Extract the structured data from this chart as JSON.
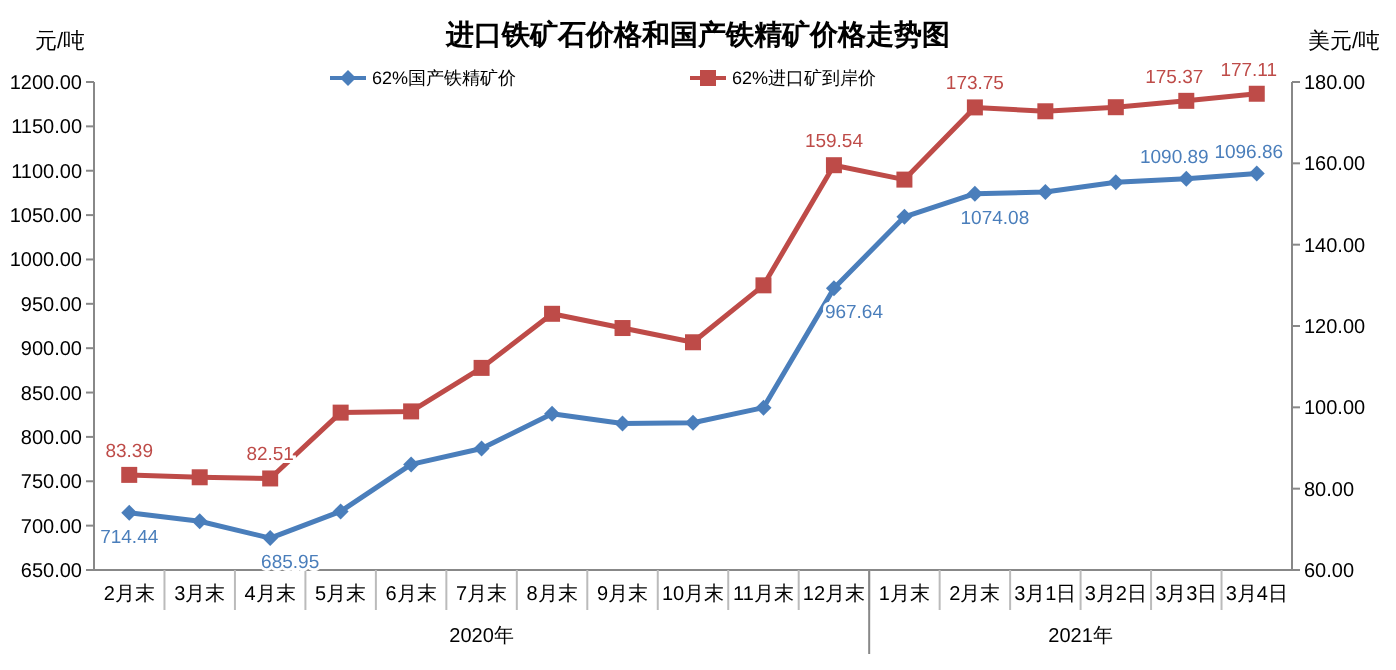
{
  "chart_data": {
    "type": "line",
    "title": "进口铁矿石价格和国产铁精矿价格走势图",
    "ylabel": "元/吨",
    "y2label": "美元/吨",
    "categories": [
      "2月末",
      "3月末",
      "4月末",
      "5月末",
      "6月末",
      "7月末",
      "8月末",
      "9月末",
      "10月末",
      "11月末",
      "12月末",
      "1月末",
      "2月末",
      "3月1日",
      "3月2日",
      "3月3日",
      "3月4日"
    ],
    "annotations": [
      "2020年",
      "2021年"
    ],
    "ylim": [
      650,
      1200
    ],
    "yticks": [
      {
        "value": 650,
        "label": "650.00"
      },
      {
        "value": 700,
        "label": "700.00"
      },
      {
        "value": 750,
        "label": "750.00"
      },
      {
        "value": 800,
        "label": "800.00"
      },
      {
        "value": 850,
        "label": "850.00"
      },
      {
        "value": 900,
        "label": "900.00"
      },
      {
        "value": 950,
        "label": "950.00"
      },
      {
        "value": 1000,
        "label": "1000.00"
      },
      {
        "value": 1050,
        "label": "1050.00"
      },
      {
        "value": 1100,
        "label": "1100.00"
      },
      {
        "value": 1150,
        "label": "1150.00"
      },
      {
        "value": 1200,
        "label": "1200.00"
      }
    ],
    "y2lim": [
      60,
      180
    ],
    "y2ticks": [
      {
        "value": 60,
        "label": "60.00"
      },
      {
        "value": 80,
        "label": "80.00"
      },
      {
        "value": 100,
        "label": "100.00"
      },
      {
        "value": 120,
        "label": "120.00"
      },
      {
        "value": 140,
        "label": "140.00"
      },
      {
        "value": 160,
        "label": "160.00"
      },
      {
        "value": 180,
        "label": "180.00"
      }
    ],
    "legend": "top",
    "grid": false,
    "line_style": "solid",
    "series": [
      {
        "name": "62%国产铁精矿价",
        "color": "#4a7ebb",
        "marker": "diamond",
        "values": [
          714.44,
          705,
          685.95,
          716,
          769,
          787,
          826,
          815,
          816,
          833,
          967.64,
          1048,
          1074.08,
          1076,
          1087,
          1090.89,
          1096.86
        ],
        "value_labels": [
          "714.44",
          null,
          "685.95",
          null,
          null,
          null,
          null,
          null,
          null,
          null,
          "967.64",
          null,
          "1074.08",
          null,
          null,
          "1090.89",
          "1096.86"
        ]
      },
      {
        "name": "62%进口矿到岸价",
        "color": "#be4b48",
        "marker": "square",
        "axis": "y2",
        "values": [
          83.39,
          82.8,
          82.51,
          98.7,
          99,
          109.7,
          123,
          119.5,
          116,
          130,
          159.54,
          156,
          173.75,
          172.8,
          173.8,
          175.37,
          177.11
        ],
        "value_labels": [
          "83.39",
          null,
          "82.51",
          null,
          null,
          null,
          null,
          null,
          null,
          null,
          "159.54",
          null,
          "173.75",
          null,
          null,
          "175.37",
          "177.11"
        ]
      }
    ]
  }
}
